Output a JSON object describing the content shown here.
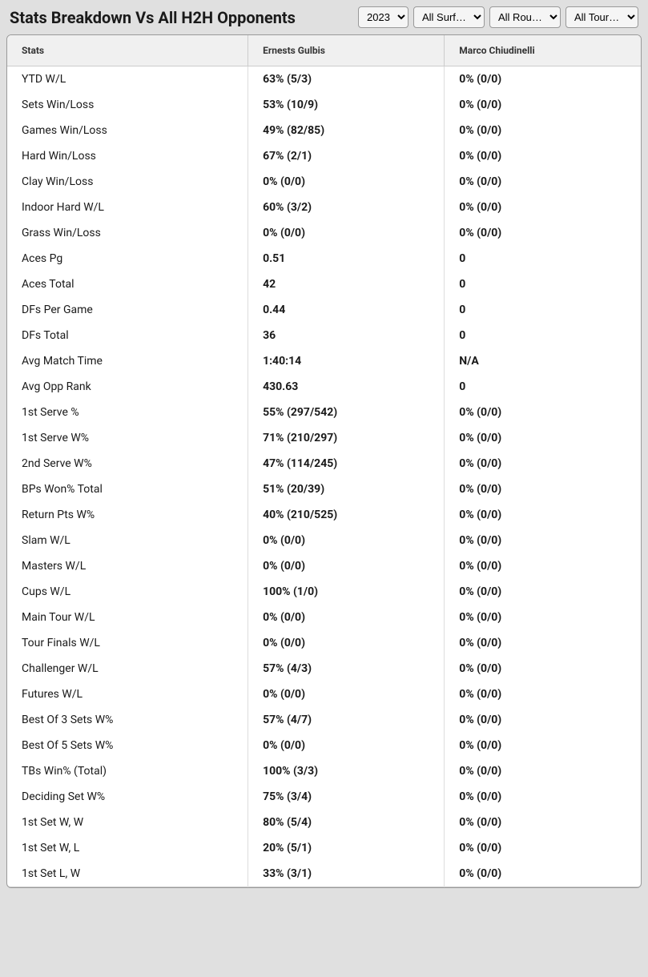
{
  "header": {
    "title": "Stats Breakdown Vs All H2H Opponents"
  },
  "filters": {
    "year": {
      "selected": "2023",
      "options": [
        "2023"
      ]
    },
    "surface": {
      "selected": "All Surf…",
      "options": [
        "All Surf…"
      ]
    },
    "round": {
      "selected": "All Rou…",
      "options": [
        "All Rou…"
      ]
    },
    "tour": {
      "selected": "All Tour…",
      "options": [
        "All Tour…"
      ]
    }
  },
  "table": {
    "columns": {
      "stats": "Stats",
      "player1": "Ernests Gulbis",
      "player2": "Marco Chiudinelli"
    },
    "rows": [
      {
        "stat": "YTD W/L",
        "p1": "63% (5/3)",
        "p2": "0% (0/0)"
      },
      {
        "stat": "Sets Win/Loss",
        "p1": "53% (10/9)",
        "p2": "0% (0/0)"
      },
      {
        "stat": "Games Win/Loss",
        "p1": "49% (82/85)",
        "p2": "0% (0/0)"
      },
      {
        "stat": "Hard Win/Loss",
        "p1": "67% (2/1)",
        "p2": "0% (0/0)"
      },
      {
        "stat": "Clay Win/Loss",
        "p1": "0% (0/0)",
        "p2": "0% (0/0)"
      },
      {
        "stat": "Indoor Hard W/L",
        "p1": "60% (3/2)",
        "p2": "0% (0/0)"
      },
      {
        "stat": "Grass Win/Loss",
        "p1": "0% (0/0)",
        "p2": "0% (0/0)"
      },
      {
        "stat": "Aces Pg",
        "p1": "0.51",
        "p2": "0"
      },
      {
        "stat": "Aces Total",
        "p1": "42",
        "p2": "0"
      },
      {
        "stat": "DFs Per Game",
        "p1": "0.44",
        "p2": "0"
      },
      {
        "stat": "DFs Total",
        "p1": "36",
        "p2": "0"
      },
      {
        "stat": "Avg Match Time",
        "p1": "1:40:14",
        "p2": "N/A"
      },
      {
        "stat": "Avg Opp Rank",
        "p1": "430.63",
        "p2": "0"
      },
      {
        "stat": "1st Serve %",
        "p1": "55% (297/542)",
        "p2": "0% (0/0)"
      },
      {
        "stat": "1st Serve W%",
        "p1": "71% (210/297)",
        "p2": "0% (0/0)"
      },
      {
        "stat": "2nd Serve W%",
        "p1": "47% (114/245)",
        "p2": "0% (0/0)"
      },
      {
        "stat": "BPs Won% Total",
        "p1": "51% (20/39)",
        "p2": "0% (0/0)"
      },
      {
        "stat": "Return Pts W%",
        "p1": "40% (210/525)",
        "p2": "0% (0/0)"
      },
      {
        "stat": "Slam W/L",
        "p1": "0% (0/0)",
        "p2": "0% (0/0)"
      },
      {
        "stat": "Masters W/L",
        "p1": "0% (0/0)",
        "p2": "0% (0/0)"
      },
      {
        "stat": "Cups W/L",
        "p1": "100% (1/0)",
        "p2": "0% (0/0)"
      },
      {
        "stat": "Main Tour W/L",
        "p1": "0% (0/0)",
        "p2": "0% (0/0)"
      },
      {
        "stat": "Tour Finals W/L",
        "p1": "0% (0/0)",
        "p2": "0% (0/0)"
      },
      {
        "stat": "Challenger W/L",
        "p1": "57% (4/3)",
        "p2": "0% (0/0)"
      },
      {
        "stat": "Futures W/L",
        "p1": "0% (0/0)",
        "p2": "0% (0/0)"
      },
      {
        "stat": "Best Of 3 Sets W%",
        "p1": "57% (4/7)",
        "p2": "0% (0/0)"
      },
      {
        "stat": "Best Of 5 Sets W%",
        "p1": "0% (0/0)",
        "p2": "0% (0/0)"
      },
      {
        "stat": "TBs Win% (Total)",
        "p1": "100% (3/3)",
        "p2": "0% (0/0)"
      },
      {
        "stat": "Deciding Set W%",
        "p1": "75% (3/4)",
        "p2": "0% (0/0)"
      },
      {
        "stat": "1st Set W, W",
        "p1": "80% (5/4)",
        "p2": "0% (0/0)"
      },
      {
        "stat": "1st Set W, L",
        "p1": "20% (5/1)",
        "p2": "0% (0/0)"
      },
      {
        "stat": "1st Set L, W",
        "p1": "33% (3/1)",
        "p2": "0% (0/0)"
      }
    ]
  }
}
